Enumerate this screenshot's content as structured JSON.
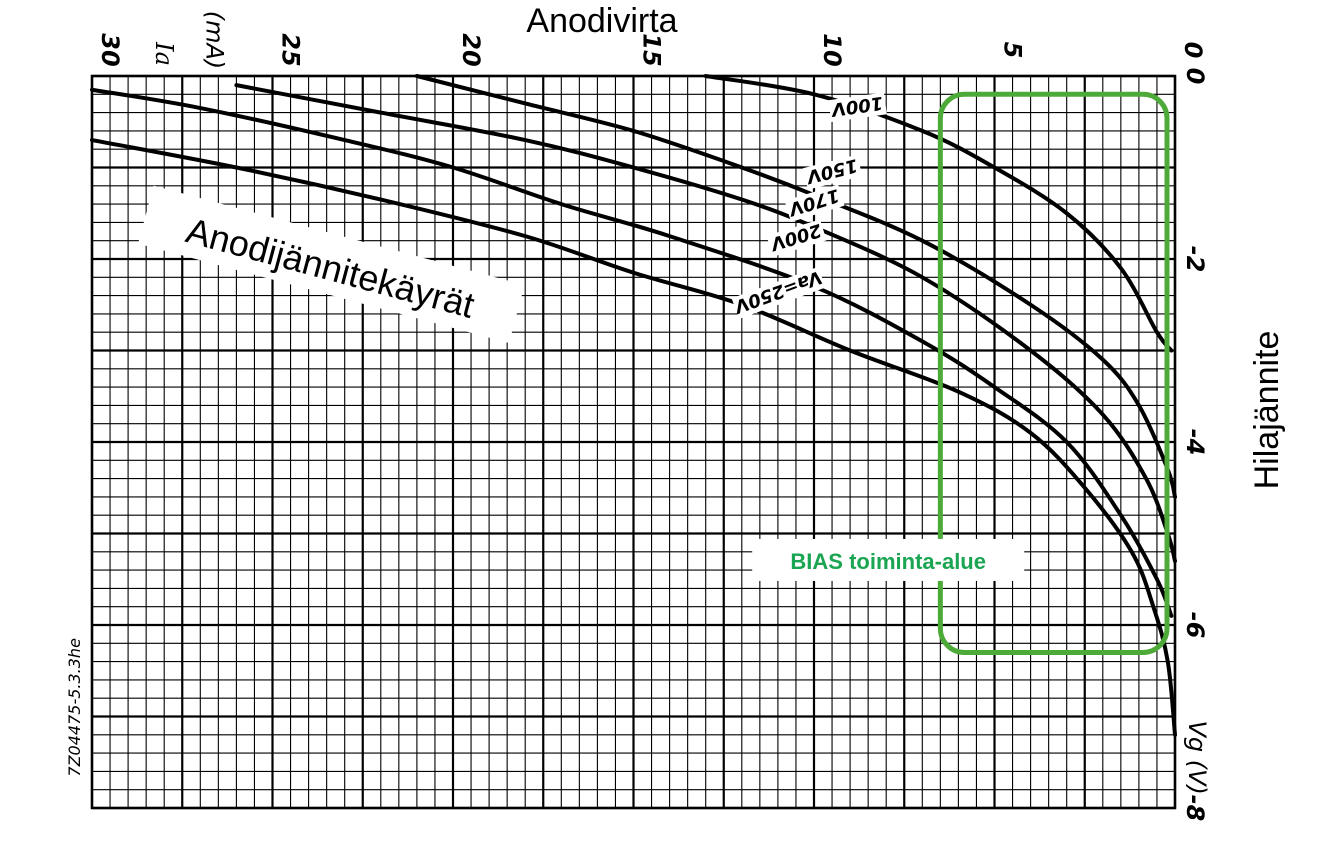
{
  "chart_data": {
    "type": "line",
    "title": "Anodivirta",
    "xlabel": "Anodivirta",
    "ylabel": "Hilajännite",
    "x_axis_symbol": "Ia",
    "x_axis_unit": "(mA)",
    "y_axis_symbol": "Vg",
    "y_axis_unit": "(V)",
    "xlim": [
      30,
      0
    ],
    "ylim": [
      0,
      -8
    ],
    "x_ticks": [
      30,
      25,
      20,
      15,
      10,
      5,
      0
    ],
    "y_ticks": [
      0,
      -2,
      -4,
      -6,
      -8
    ],
    "y_tick_labels": [
      "0",
      "-2",
      "-4",
      "-6",
      "-8"
    ],
    "grid": true,
    "series": [
      {
        "name": "100V",
        "points": [
          [
            13,
            0.0
          ],
          [
            10,
            -0.2
          ],
          [
            7,
            -0.6
          ],
          [
            5,
            -1.0
          ],
          [
            3,
            -1.5
          ],
          [
            1.5,
            -2.1
          ],
          [
            0.5,
            -2.8
          ],
          [
            0.1,
            -3.0
          ]
        ]
      },
      {
        "name": "150V",
        "points": [
          [
            21,
            0.0
          ],
          [
            18,
            -0.3
          ],
          [
            15,
            -0.6
          ],
          [
            12,
            -1.0
          ],
          [
            10,
            -1.3
          ],
          [
            7,
            -1.8
          ],
          [
            4,
            -2.5
          ],
          [
            2,
            -3.1
          ],
          [
            1,
            -3.6
          ],
          [
            0.2,
            -4.3
          ],
          [
            0,
            -4.6
          ]
        ]
      },
      {
        "name": "170V",
        "points": [
          [
            26,
            -0.1
          ],
          [
            22,
            -0.4
          ],
          [
            18,
            -0.7
          ],
          [
            15,
            -1.0
          ],
          [
            12,
            -1.35
          ],
          [
            10,
            -1.65
          ],
          [
            7,
            -2.2
          ],
          [
            4,
            -3.0
          ],
          [
            2,
            -3.7
          ],
          [
            0.8,
            -4.4
          ],
          [
            0.2,
            -5.0
          ],
          [
            0,
            -5.3
          ]
        ]
      },
      {
        "name": "200V",
        "points": [
          [
            30,
            -0.15
          ],
          [
            27,
            -0.35
          ],
          [
            23,
            -0.7
          ],
          [
            20,
            -1.0
          ],
          [
            17,
            -1.4
          ],
          [
            14,
            -1.75
          ],
          [
            10,
            -2.3
          ],
          [
            7,
            -2.9
          ],
          [
            5,
            -3.4
          ],
          [
            3,
            -4.0
          ],
          [
            1.5,
            -4.8
          ],
          [
            0.5,
            -5.5
          ],
          [
            0.1,
            -5.9
          ]
        ]
      },
      {
        "name": "Va=250V",
        "points": [
          [
            30,
            -0.7
          ],
          [
            26,
            -1.0
          ],
          [
            22,
            -1.35
          ],
          [
            18,
            -1.75
          ],
          [
            15,
            -2.15
          ],
          [
            12,
            -2.5
          ],
          [
            9,
            -3.0
          ],
          [
            6,
            -3.45
          ],
          [
            4,
            -3.9
          ],
          [
            2.5,
            -4.5
          ],
          [
            1.2,
            -5.2
          ],
          [
            0.6,
            -5.8
          ],
          [
            0.2,
            -6.4
          ],
          [
            0,
            -7.2
          ]
        ]
      }
    ],
    "series_labels": [
      "100V",
      "150V",
      "170V",
      "200V",
      "Va=250V"
    ]
  },
  "annotations": {
    "curves_label": "Anodijännitekäyrät",
    "bias_label": "BIAS toiminta-alue",
    "bias_region": {
      "x_range": [
        6.5,
        0
      ],
      "y_range": [
        -0.2,
        -6.3
      ]
    },
    "bias_color": "#4eaa38",
    "bias_text_color": "#1aa552",
    "figure_code": "7Z04475-5.3.3he"
  }
}
